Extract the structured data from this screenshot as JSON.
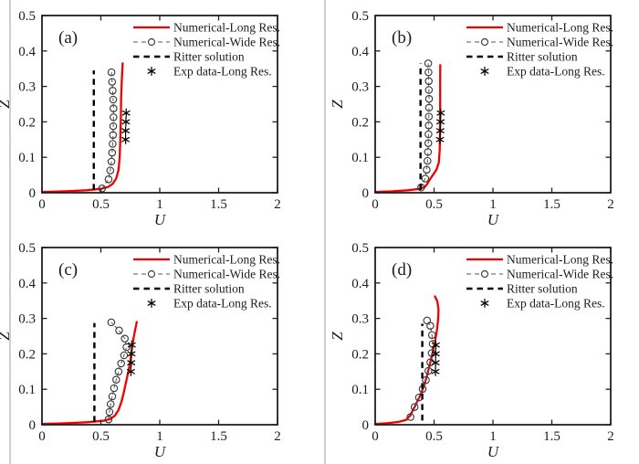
{
  "figure": {
    "background": "#ffffff",
    "accent_red": "#f10000",
    "axis_color": "#231f20",
    "marker_color": "#3a3a3a",
    "legend_labels": [
      "Numerical-Long Res.",
      "Numerical-Wide Res.",
      "Ritter solution",
      "Exp data-Long Res."
    ],
    "xlabel": "U",
    "ylabel": "Z"
  },
  "chart_data": [
    {
      "type": "line",
      "panel_letter": "(a)",
      "xlabel": "U",
      "ylabel": "Z",
      "xlim": [
        0,
        2
      ],
      "ylim": [
        0,
        0.5
      ],
      "xticks": [
        0,
        0.5,
        1,
        1.5,
        2
      ],
      "yticks": [
        0,
        0.1,
        0.2,
        0.3,
        0.4,
        0.5
      ],
      "grid": false,
      "legend_position": "top-right-inside",
      "series": [
        {
          "name": "Numerical-Long Res.",
          "style": "red-solid",
          "color": "#f10000",
          "points": [
            [
              0,
              0.002
            ],
            [
              0.2,
              0.004
            ],
            [
              0.38,
              0.007
            ],
            [
              0.5,
              0.011
            ],
            [
              0.56,
              0.016
            ],
            [
              0.6,
              0.025
            ],
            [
              0.63,
              0.04
            ],
            [
              0.65,
              0.065
            ],
            [
              0.66,
              0.1
            ],
            [
              0.665,
              0.15
            ],
            [
              0.67,
              0.21
            ],
            [
              0.672,
              0.27
            ],
            [
              0.678,
              0.32
            ],
            [
              0.685,
              0.365
            ]
          ]
        },
        {
          "name": "Numerical-Wide Res.",
          "style": "gray-dash-circle",
          "color": "#3a3a3a",
          "points": [
            [
              0.51,
              0.012
            ],
            [
              0.565,
              0.038
            ],
            [
              0.58,
              0.063
            ],
            [
              0.59,
              0.088
            ],
            [
              0.595,
              0.113
            ],
            [
              0.6,
              0.138
            ],
            [
              0.603,
              0.163
            ],
            [
              0.605,
              0.188
            ],
            [
              0.607,
              0.213
            ],
            [
              0.607,
              0.238
            ],
            [
              0.605,
              0.263
            ],
            [
              0.6,
              0.288
            ],
            [
              0.595,
              0.313
            ],
            [
              0.59,
              0.34
            ]
          ]
        },
        {
          "name": "Ritter solution",
          "style": "black-dashed",
          "color": "#000000",
          "points": [
            [
              0.44,
              0.008
            ],
            [
              0.44,
              0.345
            ]
          ]
        },
        {
          "name": "Exp data-Long Res.",
          "style": "asterisk",
          "color": "#000000",
          "points": [
            [
              0.71,
              0.15
            ],
            [
              0.71,
              0.175
            ],
            [
              0.713,
              0.2
            ],
            [
              0.715,
              0.225
            ]
          ]
        }
      ]
    },
    {
      "type": "line",
      "panel_letter": "(b)",
      "xlabel": "U",
      "ylabel": "Z",
      "xlim": [
        0,
        2
      ],
      "ylim": [
        0,
        0.5
      ],
      "xticks": [
        0,
        0.5,
        1,
        1.5,
        2
      ],
      "yticks": [
        0,
        0.1,
        0.2,
        0.3,
        0.4,
        0.5
      ],
      "grid": false,
      "legend_position": "top-right-inside",
      "series": [
        {
          "name": "Numerical-Long Res.",
          "style": "red-solid",
          "color": "#f10000",
          "points": [
            [
              0,
              0.002
            ],
            [
              0.15,
              0.004
            ],
            [
              0.28,
              0.007
            ],
            [
              0.38,
              0.011
            ],
            [
              0.42,
              0.016
            ],
            [
              0.44,
              0.024
            ],
            [
              0.46,
              0.035
            ],
            [
              0.49,
              0.05
            ],
            [
              0.52,
              0.065
            ],
            [
              0.54,
              0.085
            ],
            [
              0.548,
              0.12
            ],
            [
              0.551,
              0.18
            ],
            [
              0.552,
              0.25
            ],
            [
              0.552,
              0.31
            ],
            [
              0.553,
              0.36
            ]
          ]
        },
        {
          "name": "Numerical-Wide Res.",
          "style": "gray-dash-circle",
          "color": "#3a3a3a",
          "points": [
            [
              0.39,
              0.015
            ],
            [
              0.425,
              0.04
            ],
            [
              0.437,
              0.065
            ],
            [
              0.444,
              0.09
            ],
            [
              0.448,
              0.115
            ],
            [
              0.451,
              0.14
            ],
            [
              0.453,
              0.165
            ],
            [
              0.455,
              0.19
            ],
            [
              0.456,
              0.215
            ],
            [
              0.457,
              0.24
            ],
            [
              0.457,
              0.265
            ],
            [
              0.456,
              0.29
            ],
            [
              0.455,
              0.315
            ],
            [
              0.453,
              0.34
            ],
            [
              0.45,
              0.365
            ]
          ]
        },
        {
          "name": "Ritter solution",
          "style": "black-dashed",
          "color": "#000000",
          "points": [
            [
              0.385,
              0.008
            ],
            [
              0.385,
              0.365
            ]
          ]
        },
        {
          "name": "Exp data-Long Res.",
          "style": "asterisk",
          "color": "#000000",
          "points": [
            [
              0.55,
              0.15
            ],
            [
              0.553,
              0.175
            ],
            [
              0.555,
              0.2
            ],
            [
              0.557,
              0.225
            ]
          ]
        }
      ]
    },
    {
      "type": "line",
      "panel_letter": "(c)",
      "xlabel": "U",
      "ylabel": "Z",
      "xlim": [
        0,
        2
      ],
      "ylim": [
        0,
        0.5
      ],
      "xticks": [
        0,
        0.5,
        1,
        1.5,
        2
      ],
      "yticks": [
        0,
        0.1,
        0.2,
        0.3,
        0.4,
        0.5
      ],
      "grid": false,
      "legend_position": "top-right-inside",
      "series": [
        {
          "name": "Numerical-Long Res.",
          "style": "red-solid",
          "color": "#f10000",
          "points": [
            [
              0,
              0.002
            ],
            [
              0.2,
              0.004
            ],
            [
              0.38,
              0.007
            ],
            [
              0.52,
              0.011
            ],
            [
              0.58,
              0.016
            ],
            [
              0.62,
              0.026
            ],
            [
              0.65,
              0.042
            ],
            [
              0.675,
              0.065
            ],
            [
              0.695,
              0.092
            ],
            [
              0.715,
              0.122
            ],
            [
              0.735,
              0.152
            ],
            [
              0.75,
              0.18
            ],
            [
              0.762,
              0.21
            ],
            [
              0.775,
              0.24
            ],
            [
              0.79,
              0.266
            ],
            [
              0.805,
              0.29
            ]
          ]
        },
        {
          "name": "Numerical-Wide Res.",
          "style": "gray-dash-circle",
          "color": "#3a3a3a",
          "points": [
            [
              0.565,
              0.015
            ],
            [
              0.573,
              0.036
            ],
            [
              0.583,
              0.058
            ],
            [
              0.597,
              0.08
            ],
            [
              0.612,
              0.103
            ],
            [
              0.63,
              0.127
            ],
            [
              0.65,
              0.15
            ],
            [
              0.672,
              0.173
            ],
            [
              0.697,
              0.196
            ],
            [
              0.718,
              0.219
            ],
            [
              0.703,
              0.243
            ],
            [
              0.655,
              0.266
            ],
            [
              0.588,
              0.289
            ]
          ]
        },
        {
          "name": "Ritter solution",
          "style": "black-dashed",
          "color": "#000000",
          "points": [
            [
              0.445,
              0.008
            ],
            [
              0.445,
              0.287
            ]
          ]
        },
        {
          "name": "Exp data-Long Res.",
          "style": "asterisk",
          "color": "#000000",
          "points": [
            [
              0.755,
              0.15
            ],
            [
              0.758,
              0.175
            ],
            [
              0.76,
              0.2
            ],
            [
              0.762,
              0.225
            ]
          ]
        }
      ]
    },
    {
      "type": "line",
      "panel_letter": "(d)",
      "xlabel": "U",
      "ylabel": "Z",
      "xlim": [
        0,
        2
      ],
      "ylim": [
        0,
        0.5
      ],
      "xticks": [
        0,
        0.5,
        1,
        1.5,
        2
      ],
      "yticks": [
        0,
        0.1,
        0.2,
        0.3,
        0.4,
        0.5
      ],
      "grid": false,
      "legend_position": "top-right-inside",
      "series": [
        {
          "name": "Numerical-Long Res.",
          "style": "red-solid",
          "color": "#f10000",
          "points": [
            [
              0,
              0.002
            ],
            [
              0.1,
              0.004
            ],
            [
              0.2,
              0.008
            ],
            [
              0.265,
              0.014
            ],
            [
              0.3,
              0.028
            ],
            [
              0.335,
              0.05
            ],
            [
              0.375,
              0.078
            ],
            [
              0.41,
              0.105
            ],
            [
              0.44,
              0.138
            ],
            [
              0.465,
              0.172
            ],
            [
              0.49,
              0.206
            ],
            [
              0.51,
              0.238
            ],
            [
              0.525,
              0.268
            ],
            [
              0.535,
              0.298
            ],
            [
              0.538,
              0.325
            ],
            [
              0.528,
              0.348
            ],
            [
              0.508,
              0.362
            ]
          ]
        },
        {
          "name": "Numerical-Wide Res.",
          "style": "gray-dash-circle",
          "color": "#3a3a3a",
          "points": [
            [
              0.3,
              0.022
            ],
            [
              0.335,
              0.05
            ],
            [
              0.372,
              0.077
            ],
            [
              0.403,
              0.101
            ],
            [
              0.43,
              0.126
            ],
            [
              0.452,
              0.152
            ],
            [
              0.468,
              0.176
            ],
            [
              0.48,
              0.202
            ],
            [
              0.488,
              0.228
            ],
            [
              0.482,
              0.253
            ],
            [
              0.468,
              0.279
            ],
            [
              0.44,
              0.294
            ]
          ]
        },
        {
          "name": "Ritter solution",
          "style": "black-dashed",
          "color": "#000000",
          "points": [
            [
              0.4,
              0.012
            ],
            [
              0.4,
              0.285
            ]
          ]
        },
        {
          "name": "Exp data-Long Res.",
          "style": "asterisk",
          "color": "#000000",
          "points": [
            [
              0.512,
              0.15
            ],
            [
              0.513,
              0.175
            ],
            [
              0.514,
              0.2
            ],
            [
              0.515,
              0.225
            ]
          ]
        }
      ]
    }
  ]
}
